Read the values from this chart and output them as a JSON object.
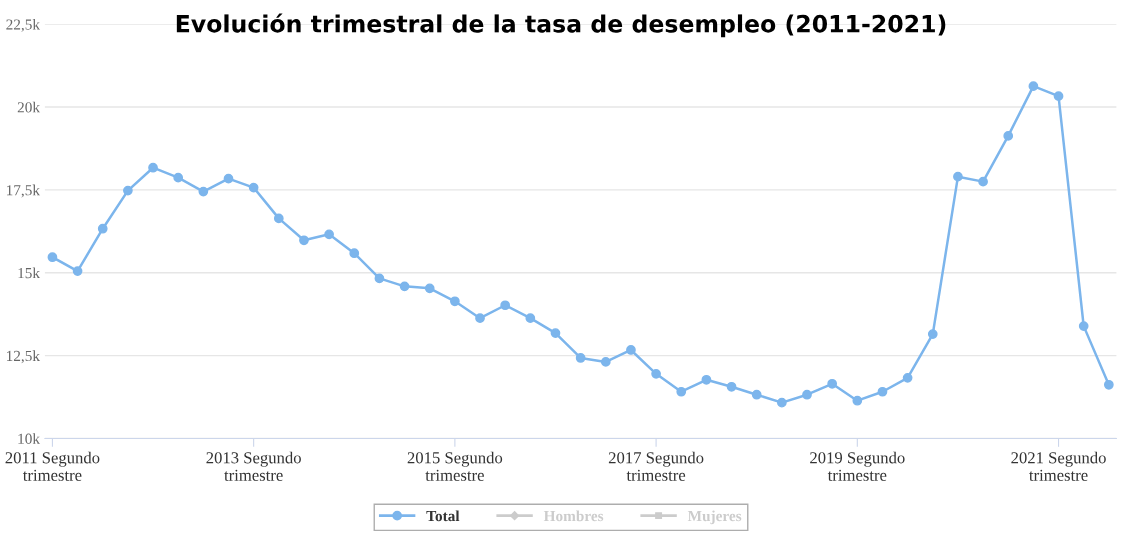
{
  "chart_data": {
    "type": "line",
    "title": "Evolución trimestral de la tasa de desempleo (2011-2021)",
    "categories": [
      "2011 Segundo trimestre",
      null,
      null,
      null,
      null,
      null,
      null,
      null,
      "2013 Segundo trimestre",
      null,
      null,
      null,
      null,
      null,
      null,
      null,
      "2015 Segundo trimestre",
      null,
      null,
      null,
      null,
      null,
      null,
      null,
      "2017 Segundo trimestre",
      null,
      null,
      null,
      null,
      null,
      null,
      null,
      "2019 Segundo trimestre",
      null,
      null,
      null,
      null,
      null,
      null,
      null,
      "2021 Segundo trimestre",
      null,
      null
    ],
    "series": [
      {
        "name": "Total",
        "color": "#7cb5ec",
        "marker": "circle",
        "values": [
          15.47,
          15.05,
          16.33,
          17.48,
          18.17,
          17.87,
          17.45,
          17.84,
          17.57,
          16.64,
          15.98,
          16.16,
          15.59,
          14.83,
          14.59,
          14.53,
          14.14,
          13.63,
          14.02,
          13.63,
          13.18,
          12.43,
          12.31,
          12.67,
          11.95,
          11.41,
          11.77,
          11.56,
          11.32,
          11.08,
          11.32,
          11.65,
          11.14,
          11.41,
          11.83,
          13.15,
          17.9,
          17.75,
          19.13,
          20.63,
          20.33,
          13.39,
          11.62
        ]
      },
      {
        "name": "Hombres",
        "color": "#cccccc",
        "marker": "diamond",
        "values": [
          null,
          null,
          null,
          null,
          null,
          null,
          null,
          null,
          null,
          null,
          null,
          null,
          null,
          null,
          null,
          null,
          null,
          null,
          null,
          null,
          null,
          null,
          null,
          null,
          null,
          null,
          null,
          null,
          null,
          null,
          null,
          null,
          null,
          null,
          null,
          null,
          null,
          null,
          null,
          null,
          null,
          null,
          null
        ]
      },
      {
        "name": "Mujeres",
        "color": "#cccccc",
        "marker": "square",
        "values": [
          null,
          null,
          null,
          null,
          null,
          null,
          null,
          null,
          null,
          null,
          null,
          null,
          null,
          null,
          null,
          null,
          null,
          null,
          null,
          null,
          null,
          null,
          null,
          null,
          null,
          null,
          null,
          null,
          null,
          null,
          null,
          null,
          null,
          null,
          null,
          null,
          null,
          null,
          null,
          null,
          null,
          null,
          null
        ]
      }
    ],
    "ylim": [
      10,
      22.5
    ],
    "yticks": [
      {
        "value": 10,
        "label": "10k"
      },
      {
        "value": 12.5,
        "label": "12,5k"
      },
      {
        "value": 15,
        "label": "15k"
      },
      {
        "value": 17.5,
        "label": "17,5k"
      },
      {
        "value": 20,
        "label": "20k"
      },
      {
        "value": 22.5,
        "label": "22,5k"
      }
    ],
    "grid": "y",
    "legend": "bottom",
    "line_style": "solid"
  }
}
